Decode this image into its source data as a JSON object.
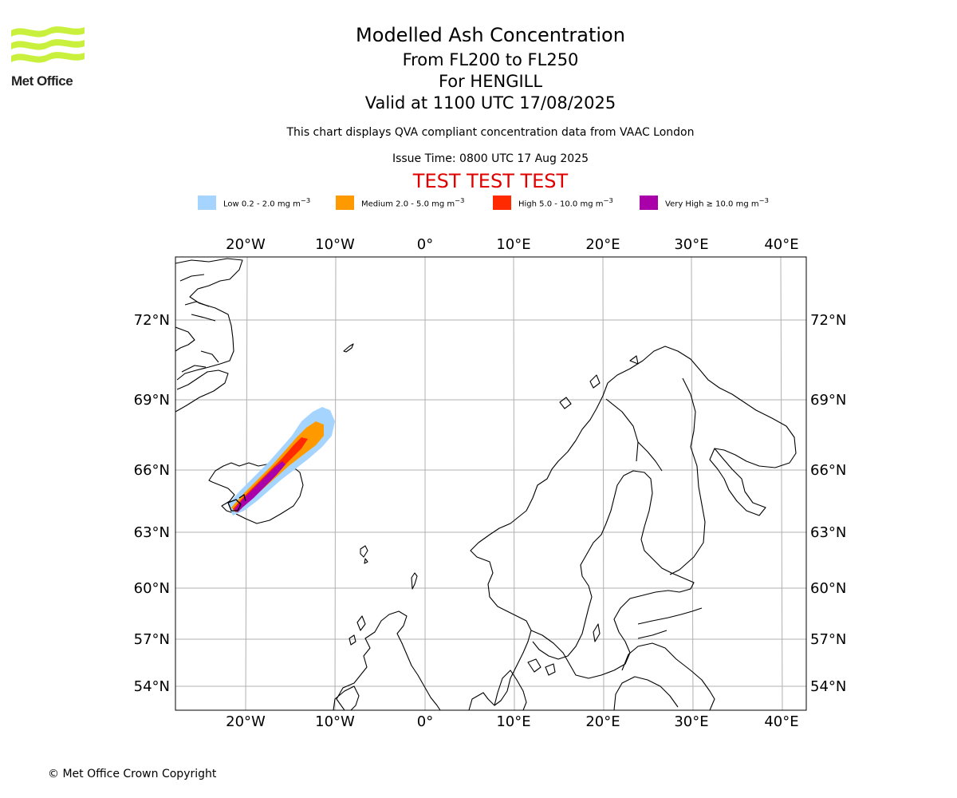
{
  "logo": {
    "text": "Met Office",
    "color": "#c8f03c"
  },
  "header": {
    "title": "Modelled Ash Concentration",
    "levels": "From FL200 to FL250",
    "volcano": "For HENGILL",
    "valid": "Valid at 1100 UTC 17/08/2025",
    "note": "This chart displays QVA compliant concentration data from VAAC London",
    "issue": "Issue Time: 0800 UTC 17 Aug 2025",
    "test_banner": "TEST TEST TEST",
    "test_color": "#e00000"
  },
  "legend": [
    {
      "name": "Low",
      "label": "Low 0.2 - 2.0 mg m",
      "color": "#a5d5ff"
    },
    {
      "name": "Medium",
      "label": "Medium 2.0 - 5.0 mg m",
      "color": "#ff9900"
    },
    {
      "name": "High",
      "label": "High 5.0 - 10.0 mg m",
      "color": "#ff2a00"
    },
    {
      "name": "Very High",
      "label": "Very High ≥ 10.0 mg m",
      "color": "#aa00aa"
    }
  ],
  "legend_unit_sup": "−3",
  "map": {
    "lon_labels": [
      "20°W",
      "10°W",
      "0°",
      "10°E",
      "20°E",
      "30°E",
      "40°E"
    ],
    "lat_labels": [
      "72°N",
      "69°N",
      "66°N",
      "63°N",
      "60°N",
      "57°N",
      "54°N"
    ],
    "grid": true,
    "projection": "polar stereographic"
  },
  "footer": {
    "copyright": "© Met Office Crown Copyright"
  }
}
